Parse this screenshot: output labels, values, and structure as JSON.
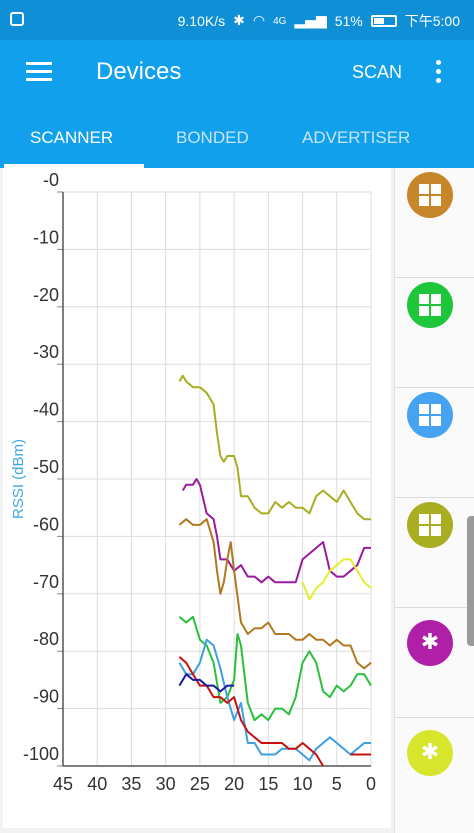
{
  "status_bar": {
    "speed": "9.10K/s",
    "network": "4G",
    "battery": "51%",
    "battery_level": 0.51,
    "time": "下午5:00"
  },
  "app_bar": {
    "title": "Devices",
    "scan_label": "SCAN"
  },
  "tabs": [
    {
      "label": "SCANNER",
      "active": true
    },
    {
      "label": "BONDED",
      "active": false
    },
    {
      "label": "ADVERTISER",
      "active": false
    }
  ],
  "devices": [
    {
      "icon": "windows-icon",
      "color": "#c8862a"
    },
    {
      "icon": "windows-icon",
      "color": "#1ec73a"
    },
    {
      "icon": "windows-icon",
      "color": "#45a3f2"
    },
    {
      "icon": "windows-icon",
      "color": "#a9ad20"
    },
    {
      "icon": "bluetooth-icon",
      "color": "#b01fa8",
      "glyph": "✱"
    },
    {
      "icon": "bluetooth-icon",
      "color": "#d7e62c",
      "glyph": "✱"
    }
  ],
  "chart_data": {
    "type": "line",
    "ylabel": "RSSI (dBm)",
    "xlabel": "",
    "ylim": [
      -100,
      0
    ],
    "xlim": [
      45,
      0
    ],
    "y_ticks": [
      "-0",
      "-10",
      "-20",
      "-30",
      "-40",
      "-50",
      "-60",
      "-70",
      "-80",
      "-90",
      "-100"
    ],
    "x_ticks": [
      "45",
      "40",
      "35",
      "30",
      "25",
      "20",
      "15",
      "10",
      "5",
      "0"
    ],
    "grid": true,
    "series": [
      {
        "color": "#a9ad20",
        "points": [
          [
            28,
            -33
          ],
          [
            27.5,
            -32
          ],
          [
            27,
            -33
          ],
          [
            26,
            -34
          ],
          [
            25,
            -34
          ],
          [
            24,
            -35
          ],
          [
            23,
            -37
          ],
          [
            22.5,
            -42
          ],
          [
            22,
            -46
          ],
          [
            21.5,
            -47
          ],
          [
            21,
            -46
          ],
          [
            20,
            -46
          ],
          [
            19.5,
            -48
          ],
          [
            19,
            -53
          ],
          [
            18,
            -53
          ],
          [
            17,
            -55
          ],
          [
            16,
            -56
          ],
          [
            15,
            -56
          ],
          [
            14,
            -54
          ],
          [
            13,
            -55
          ],
          [
            12,
            -54
          ],
          [
            11,
            -55
          ],
          [
            10,
            -55
          ],
          [
            9,
            -56
          ],
          [
            8,
            -53
          ],
          [
            7,
            -52
          ],
          [
            6,
            -53
          ],
          [
            5,
            -54
          ],
          [
            4,
            -52
          ],
          [
            3,
            -54
          ],
          [
            2,
            -56
          ],
          [
            1,
            -57
          ],
          [
            0,
            -57
          ]
        ]
      },
      {
        "color": "#9a1aa0",
        "points": [
          [
            27.5,
            -52
          ],
          [
            27,
            -51
          ],
          [
            26,
            -51
          ],
          [
            25.5,
            -50
          ],
          [
            25,
            -51
          ],
          [
            24,
            -56
          ],
          [
            23,
            -57
          ],
          [
            22.5,
            -60
          ],
          [
            22,
            -64
          ],
          [
            21,
            -64
          ],
          [
            20.5,
            -65
          ],
          [
            20,
            -66
          ],
          [
            19,
            -65
          ],
          [
            18,
            -67
          ],
          [
            17,
            -67
          ],
          [
            16,
            -68
          ],
          [
            15,
            -67
          ],
          [
            14,
            -68
          ],
          [
            13,
            -68
          ],
          [
            12,
            -68
          ],
          [
            11,
            -68
          ],
          [
            10,
            -64
          ],
          [
            9,
            -63
          ],
          [
            8,
            -62
          ],
          [
            7,
            -61
          ],
          [
            6,
            -66
          ],
          [
            5,
            -67
          ],
          [
            4,
            -67
          ],
          [
            3,
            -66
          ],
          [
            2,
            -65
          ],
          [
            1,
            -62
          ],
          [
            0,
            -62
          ]
        ]
      },
      {
        "color": "#b07820",
        "points": [
          [
            28,
            -58
          ],
          [
            27,
            -57
          ],
          [
            26,
            -58
          ],
          [
            25,
            -58
          ],
          [
            24,
            -57
          ],
          [
            23,
            -61
          ],
          [
            22.5,
            -66
          ],
          [
            22,
            -70
          ],
          [
            21.5,
            -68
          ],
          [
            21,
            -64
          ],
          [
            20.5,
            -61
          ],
          [
            20,
            -66
          ],
          [
            19,
            -75
          ],
          [
            18,
            -77
          ],
          [
            17,
            -76
          ],
          [
            16,
            -76
          ],
          [
            15,
            -75
          ],
          [
            14,
            -77
          ],
          [
            13,
            -77
          ],
          [
            12,
            -77
          ],
          [
            11,
            -78
          ],
          [
            10,
            -78
          ],
          [
            9,
            -77
          ],
          [
            8,
            -78
          ],
          [
            7,
            -78
          ],
          [
            6,
            -79
          ],
          [
            5,
            -78
          ],
          [
            4,
            -79
          ],
          [
            3,
            -79
          ],
          [
            2,
            -82
          ],
          [
            1,
            -83
          ],
          [
            0,
            -82
          ]
        ]
      },
      {
        "color": "#e4ee2c",
        "points": [
          [
            10,
            -68
          ],
          [
            9,
            -71
          ],
          [
            8,
            -69
          ],
          [
            7,
            -68
          ],
          [
            6,
            -66
          ],
          [
            5,
            -65
          ],
          [
            4,
            -64
          ],
          [
            3,
            -64
          ],
          [
            2,
            -66
          ],
          [
            1,
            -68
          ],
          [
            0,
            -69
          ]
        ]
      },
      {
        "color": "#2bbf3a",
        "points": [
          [
            28,
            -74
          ],
          [
            27,
            -75
          ],
          [
            26,
            -74
          ],
          [
            25,
            -78
          ],
          [
            24,
            -79
          ],
          [
            23,
            -82
          ],
          [
            22,
            -89
          ],
          [
            21,
            -88
          ],
          [
            20,
            -85
          ],
          [
            19.5,
            -77
          ],
          [
            19,
            -79
          ],
          [
            18,
            -89
          ],
          [
            17,
            -92
          ],
          [
            16,
            -91
          ],
          [
            15,
            -92
          ],
          [
            14,
            -90
          ],
          [
            13,
            -90
          ],
          [
            12,
            -91
          ],
          [
            11,
            -88
          ],
          [
            10,
            -82
          ],
          [
            9,
            -80
          ],
          [
            8,
            -82
          ],
          [
            7,
            -87
          ],
          [
            6,
            -88
          ],
          [
            5,
            -86
          ],
          [
            4,
            -87
          ],
          [
            3,
            -86
          ],
          [
            2,
            -84
          ],
          [
            1,
            -84
          ],
          [
            0,
            -86
          ]
        ]
      },
      {
        "color": "#3f9fe0",
        "points": [
          [
            28,
            -82
          ],
          [
            27,
            -84
          ],
          [
            26,
            -84
          ],
          [
            25,
            -82
          ],
          [
            24,
            -78
          ],
          [
            23,
            -79
          ],
          [
            22,
            -83
          ],
          [
            21,
            -88
          ],
          [
            20,
            -92
          ],
          [
            19,
            -89
          ],
          [
            18,
            -96
          ],
          [
            17,
            -96
          ],
          [
            16,
            -98
          ],
          [
            15,
            -98
          ],
          [
            14,
            -98
          ],
          [
            13,
            -97
          ],
          [
            12,
            -97
          ],
          [
            11,
            -97
          ],
          [
            10,
            -98
          ],
          [
            9,
            -99
          ],
          [
            8,
            -97
          ],
          [
            7,
            -96
          ],
          [
            6,
            -95
          ],
          [
            5,
            -96
          ],
          [
            4,
            -97
          ],
          [
            3,
            -98
          ],
          [
            2,
            -97
          ],
          [
            1,
            -96
          ],
          [
            0,
            -96
          ]
        ]
      },
      {
        "color": "#c81010",
        "points": [
          [
            28,
            -81
          ],
          [
            27,
            -82
          ],
          [
            26,
            -84
          ],
          [
            25,
            -86
          ],
          [
            24,
            -86
          ],
          [
            23,
            -88
          ],
          [
            22,
            -88
          ],
          [
            21,
            -89
          ],
          [
            20,
            -88
          ],
          [
            19,
            -92
          ],
          [
            18,
            -94
          ],
          [
            17,
            -95
          ],
          [
            16,
            -96
          ],
          [
            15,
            -96
          ],
          [
            14,
            -96
          ],
          [
            13,
            -96
          ],
          [
            12,
            -97
          ],
          [
            11,
            -97
          ],
          [
            10,
            -96
          ],
          [
            9,
            -97
          ],
          [
            8,
            -98
          ],
          [
            7,
            -100
          ]
        ]
      },
      {
        "color": "#1a1aa0",
        "points": [
          [
            28,
            -86
          ],
          [
            27,
            -84
          ],
          [
            26,
            -85
          ],
          [
            25,
            -85
          ],
          [
            24,
            -86
          ],
          [
            23,
            -86
          ],
          [
            22,
            -87
          ],
          [
            21,
            -86
          ],
          [
            20,
            -86
          ]
        ]
      },
      {
        "color": "#c81010",
        "points": [
          [
            3,
            -98
          ],
          [
            2,
            -98
          ],
          [
            1,
            -98
          ],
          [
            0,
            -98
          ]
        ]
      }
    ]
  }
}
